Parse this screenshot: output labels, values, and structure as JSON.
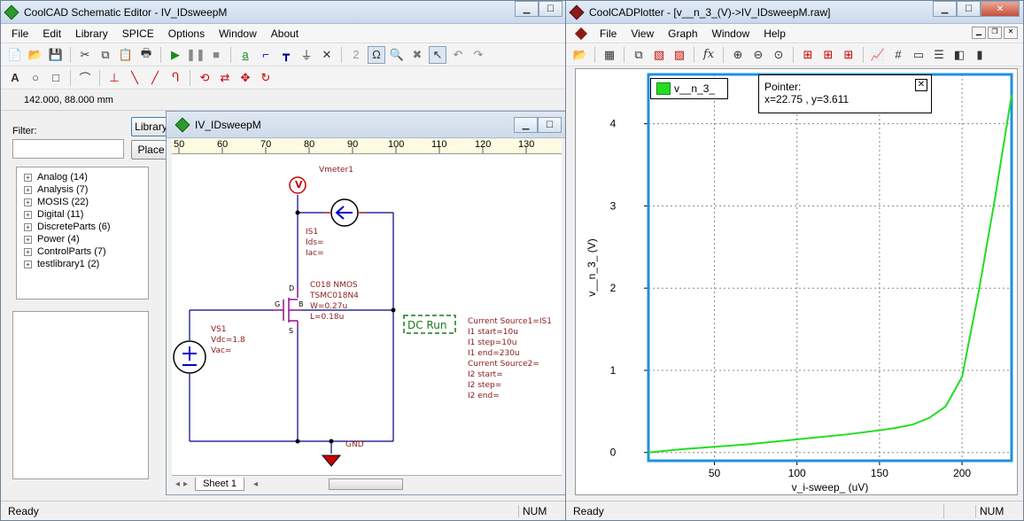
{
  "left_window": {
    "title": "CoolCAD Schematic Editor - IV_IDsweepM",
    "menu": [
      "File",
      "Edit",
      "Library",
      "SPICE",
      "Options",
      "Window",
      "About"
    ],
    "coords": "142.000,  88.000 mm",
    "filter_label": "Filter:",
    "library_button": "Library",
    "place_button": "Place",
    "tree": [
      "Analog (14)",
      "Analysis (7)",
      "MOSIS (22)",
      "Digital (11)",
      "DiscreteParts (6)",
      "Power (4)",
      "ControlParts (7)",
      "testlibrary1 (2)"
    ],
    "status": "Ready",
    "status_num": "NUM"
  },
  "schematic_window": {
    "title": "IV_IDsweepM",
    "ruler": [
      "50",
      "60",
      "70",
      "80",
      "90",
      "100",
      "110",
      "120",
      "130"
    ],
    "sheet_tab": "Sheet 1",
    "vmeter_label": "Vmeter1",
    "is1_label": "IS1",
    "is1_ids": "Ids=",
    "is1_iac": "Iac=",
    "mos_model": "C018 NMOS",
    "mos_name": "TSMC018N4",
    "mos_w": "W=0.27u",
    "mos_l": "L=0.18u",
    "pin_d": "D",
    "pin_g": "G",
    "pin_b": "B",
    "pin_s": "S",
    "vs1_label": "VS1",
    "vs1_vdc": "Vdc=1.8",
    "vs1_vac": "Vac=",
    "gnd_label": "GND",
    "dc_run": "DC Run",
    "sweep_lines": [
      "Current Source1=IS1",
      "I1 start=10u",
      "I1 step=10u",
      "I1 end=230u",
      "Current Source2=",
      "I2 start=",
      "I2 step=",
      "I2 end="
    ],
    "vmeter_symbol": "V"
  },
  "plotter_window": {
    "title": "CoolCADPlotter - [v__n_3_(V)->IV_IDsweepM.raw]",
    "menu": [
      "File",
      "View",
      "Graph",
      "Window",
      "Help"
    ],
    "legend": "v__n_3_",
    "pointer_title": "Pointer:",
    "pointer_value": "x=22.75 , y=3.611",
    "status": "Ready",
    "status_num": "NUM"
  },
  "chart_data": {
    "type": "line",
    "xlabel": "v_i-sweep_ (uV)",
    "ylabel": "v__n_3_ (V)",
    "xlim": [
      10,
      230
    ],
    "ylim": [
      -0.1,
      4.6
    ],
    "xticks": [
      "50",
      "100",
      "150",
      "200"
    ],
    "yticks": [
      "0",
      "1",
      "2",
      "3",
      "4"
    ],
    "grid": true,
    "legend_position": "top-left",
    "series": [
      {
        "name": "v__n_3_",
        "color": "#22dd22",
        "x": [
          10,
          30,
          50,
          70,
          90,
          110,
          130,
          150,
          160,
          170,
          180,
          190,
          200,
          210,
          220,
          230
        ],
        "y": [
          0.0,
          0.04,
          0.07,
          0.1,
          0.14,
          0.18,
          0.22,
          0.27,
          0.3,
          0.34,
          0.42,
          0.56,
          0.92,
          1.95,
          3.1,
          4.35
        ]
      }
    ]
  },
  "colors": {
    "trace": "#22dd22",
    "plot_frame": "#1e90e0",
    "schematic_text": "#8b1a1a",
    "wire": "#00008b",
    "component": "#0000cc",
    "ground": "#cc0000"
  }
}
